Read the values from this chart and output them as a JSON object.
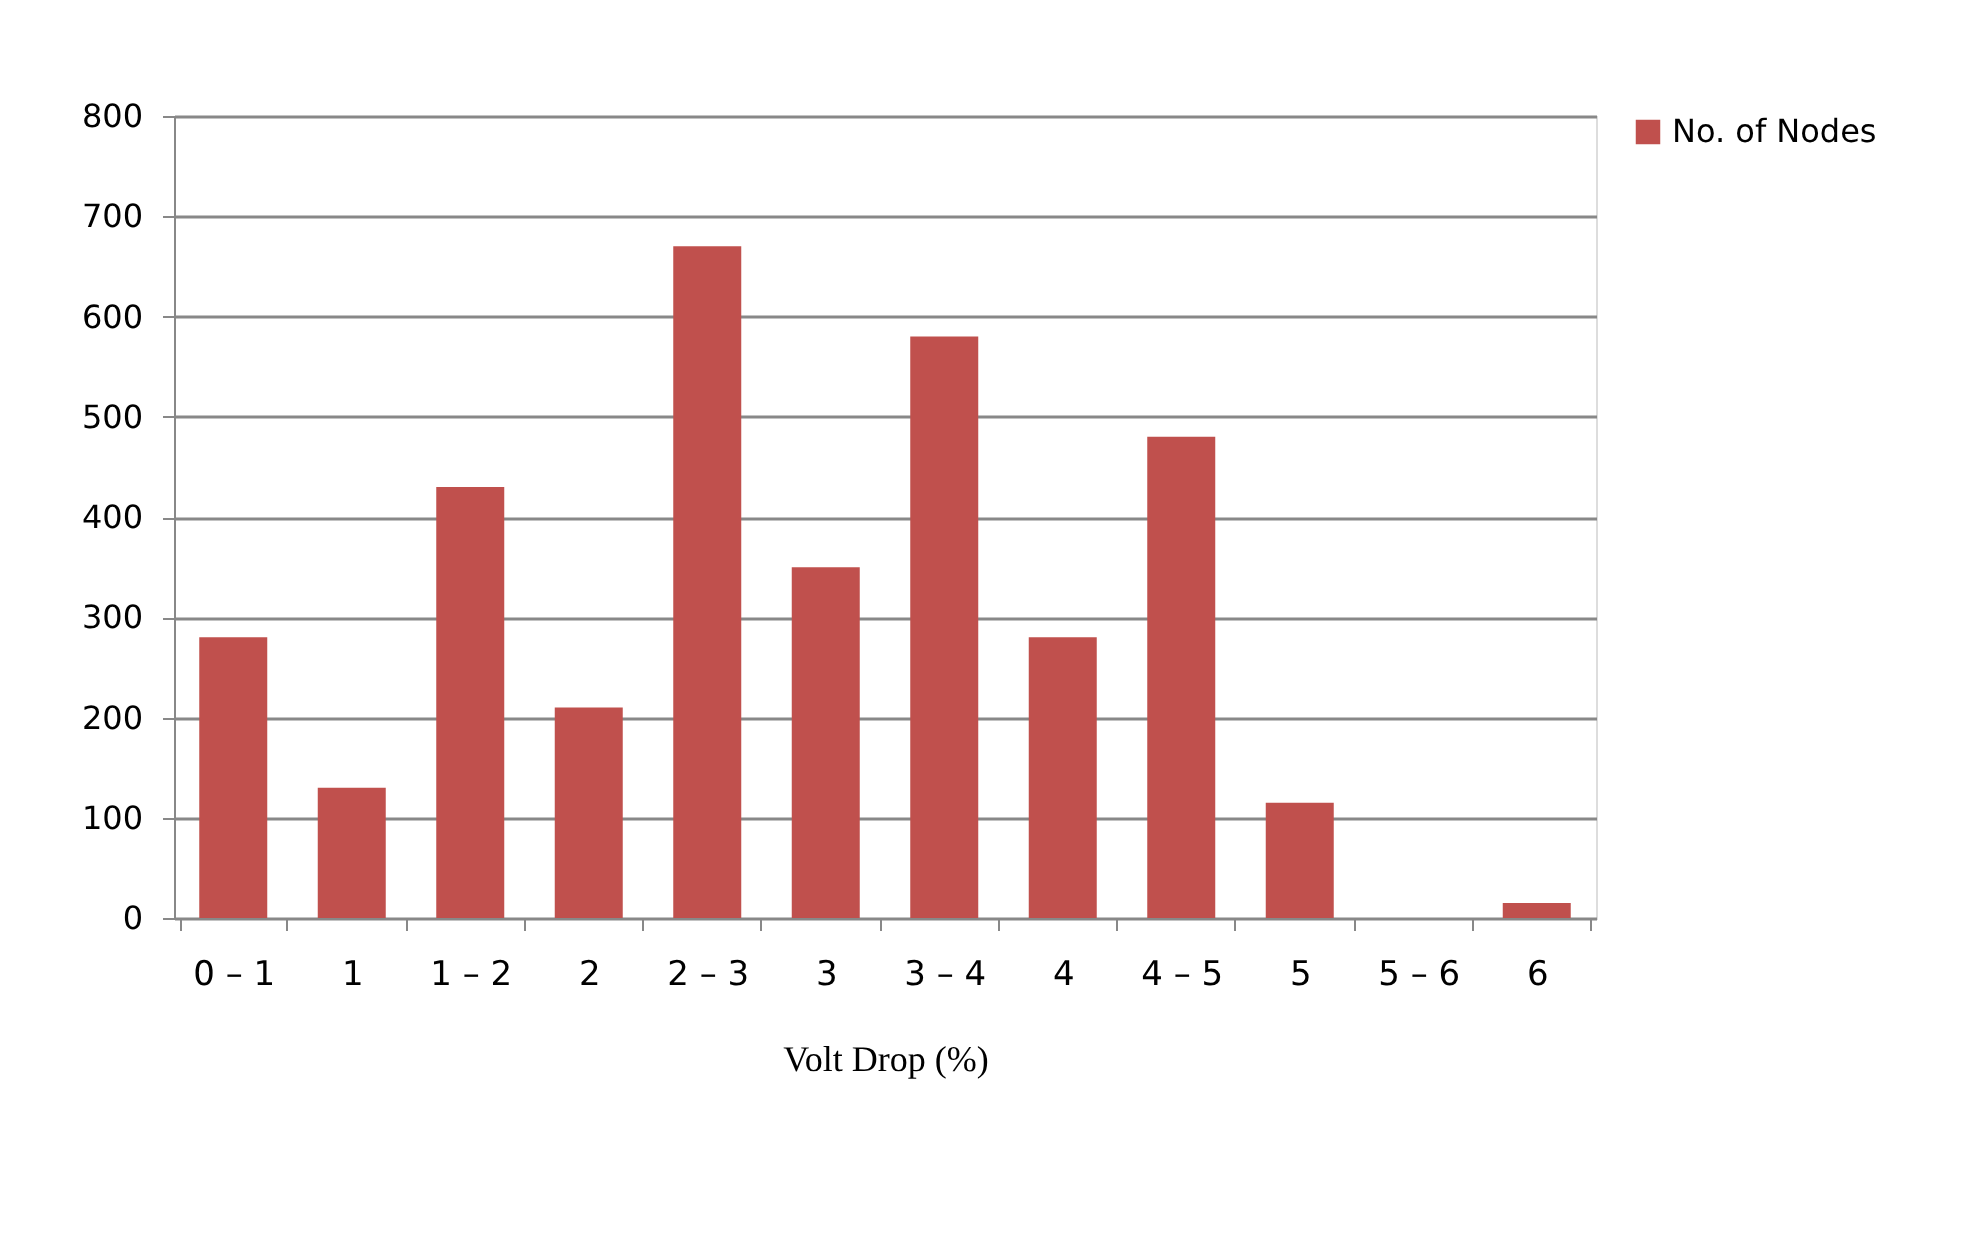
{
  "chart_data": {
    "type": "bar",
    "xlabel": "Volt Drop (%)",
    "categories": [
      "0 – 1",
      "1",
      "1 – 2",
      "2",
      "2 – 3",
      "3",
      "3 – 4",
      "4",
      "4 – 5",
      "5",
      "5 – 6",
      "6"
    ],
    "series": [
      {
        "name": "No. of Nodes",
        "color": "#c0504d",
        "values": [
          280,
          130,
          430,
          210,
          670,
          350,
          580,
          280,
          480,
          115,
          0,
          15
        ]
      }
    ],
    "ylim": [
      0,
      800
    ],
    "yticks": [
      0,
      100,
      200,
      300,
      400,
      500,
      600,
      700,
      800
    ],
    "grid": "y",
    "legend": "right"
  }
}
